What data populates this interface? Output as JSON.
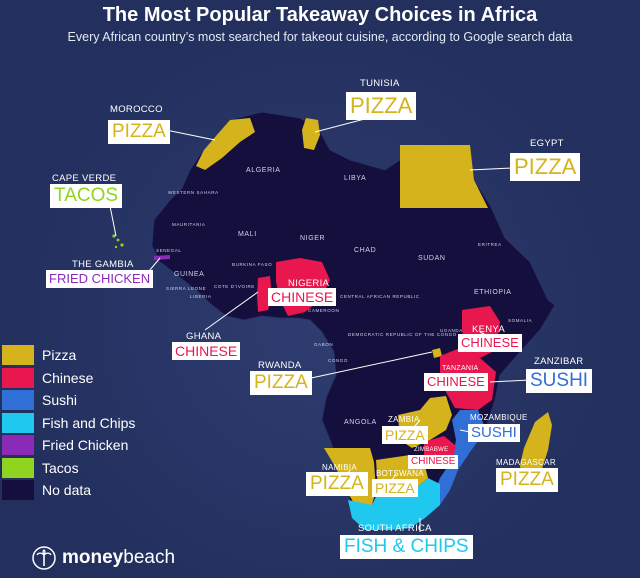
{
  "title": "The Most Popular Takeaway Choices in Africa",
  "subtitle": "Every African country’s most searched for takeout cuisine, according to Google search data",
  "colors": {
    "pizza": "#d4b31c",
    "chinese": "#e8174e",
    "sushi": "#2f6fd6",
    "fish_and_chips": "#1ec8ee",
    "fried_chicken": "#8a2bb8",
    "tacos": "#8fd41e",
    "no_data": "#150f3d"
  },
  "legend": [
    {
      "label": "Pizza",
      "color": "#d4b31c"
    },
    {
      "label": "Chinese",
      "color": "#e8174e"
    },
    {
      "label": "Sushi",
      "color": "#2f6fd6"
    },
    {
      "label": "Fish and Chips",
      "color": "#1ec8ee"
    },
    {
      "label": "Fried Chicken",
      "color": "#8a2bb8"
    },
    {
      "label": "Tacos",
      "color": "#8fd41e"
    },
    {
      "label": "No data",
      "color": "#150f3d"
    }
  ],
  "callouts": {
    "morocco": {
      "country": "MOROCCO",
      "food": "PIZZA"
    },
    "tunisia": {
      "country": "TUNISIA",
      "food": "PIZZA"
    },
    "egypt": {
      "country": "EGYPT",
      "food": "PIZZA"
    },
    "cape_verde": {
      "country": "CAPE VERDE",
      "food": "TACOS"
    },
    "gambia": {
      "country": "THE GAMBIA",
      "food": "FRIED CHICKEN"
    },
    "nigeria": {
      "country": "NIGERIA",
      "food": "CHINESE"
    },
    "ghana": {
      "country": "GHANA",
      "food": "CHINESE"
    },
    "kenya": {
      "country": "KENYA",
      "food": "CHINESE"
    },
    "rwanda": {
      "country": "RWANDA",
      "food": "PIZZA"
    },
    "tanzania": {
      "country": "TANZANIA",
      "food": "CHINESE"
    },
    "zanzibar": {
      "country": "ZANZIBAR",
      "food": "SUSHI"
    },
    "zambia": {
      "country": "ZAMBIA",
      "food": "PIZZA"
    },
    "mozambique": {
      "country": "MOZAMBIQUE",
      "food": "SUSHI"
    },
    "zimbabwe": {
      "country": "ZIMBABWE",
      "food": "CHINESE"
    },
    "madagascar": {
      "country": "MADAGASCAR",
      "food": "PIZZA"
    },
    "namibia": {
      "country": "NAMIBIA",
      "food": "PIZZA"
    },
    "botswana": {
      "country": "BOTSWANA",
      "food": "PIZZA"
    },
    "south_africa": {
      "country": "SOUTH AFRICA",
      "food": "FISH & CHIPS"
    }
  },
  "map_labels": {
    "algeria": "ALGERIA",
    "libya": "LIBYA",
    "western_sahara": "WESTERN SAHARA",
    "mauritania": "MAURITANIA",
    "mali": "MALI",
    "niger": "NIGER",
    "chad": "CHAD",
    "sudan": "SUDAN",
    "eritrea": "ERITREA",
    "senegal": "SENEGAL",
    "guinea": "GUINEA",
    "burkina_faso": "BURKINA FASO",
    "sierra_leone": "SIERRA LEONE",
    "liberia": "LIBERIA",
    "cote_divoire": "COTE D'IVOIRE",
    "cameroon": "CAMEROON",
    "car": "CENTRAL AFRICAN REPUBLIC",
    "ethiopia": "ETHIOPIA",
    "somalia": "SOMALIA",
    "uganda": "UGANDA",
    "gabon": "GABON",
    "congo": "CONGO",
    "drc": "DEMOCRATIC REPUBLIC OF THE CONGO",
    "angola": "ANGOLA"
  },
  "brand": {
    "part1": "money",
    "part2": "beach",
    "icon": "palm-tree-icon"
  }
}
